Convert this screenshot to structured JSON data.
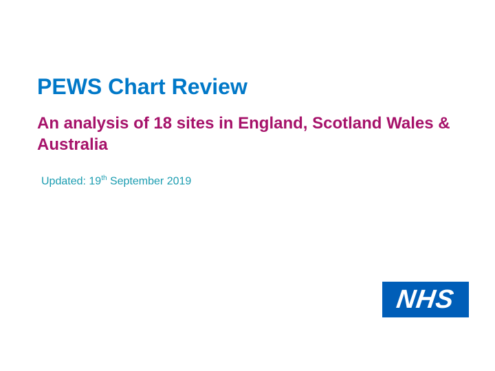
{
  "title": {
    "text": "PEWS Chart Review",
    "color": "#0078c8",
    "fontsize": 32,
    "fontweight": "bold"
  },
  "subtitle": {
    "text": "An analysis of 18 sites in England, Scotland Wales & Australia",
    "color": "#a6126a",
    "fontsize": 24,
    "fontweight": "bold"
  },
  "updated": {
    "prefix": "Updated: 19",
    "ordinal": "th",
    "suffix": " September 2019",
    "color": "#1a9cb0",
    "fontsize": 16
  },
  "logo": {
    "text": "NHS",
    "bg_color": "#005eb8",
    "text_color": "#ffffff"
  },
  "background_color": "#ffffff"
}
